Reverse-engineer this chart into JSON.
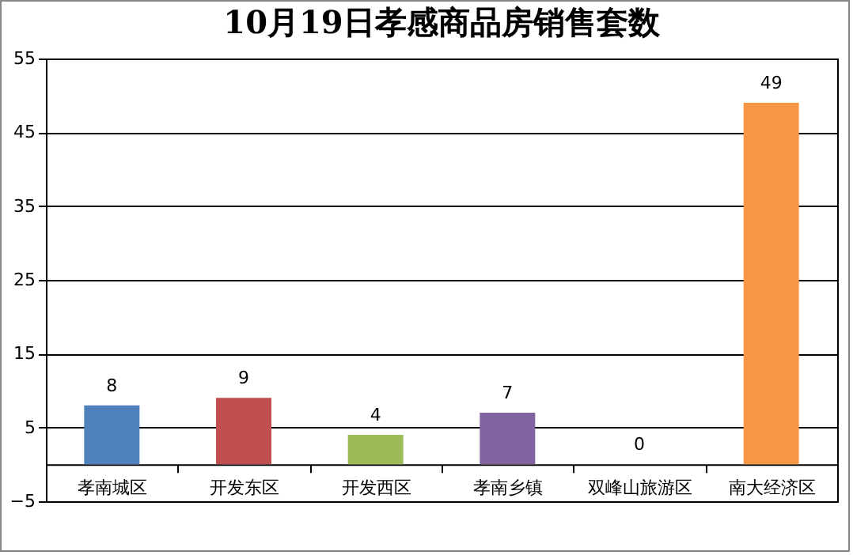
{
  "chart_data": {
    "type": "bar",
    "title": "10月19日孝感商品房销售套数",
    "categories": [
      "孝南城区",
      "开发东区",
      "开发西区",
      "孝南乡镇",
      "双峰山旅游区",
      "南大经济区"
    ],
    "values": [
      8,
      9,
      4,
      7,
      0,
      49
    ],
    "colors": [
      "#4f81bd",
      "#c0504d",
      "#9bbb59",
      "#8064a2",
      "#4bacc6",
      "#f79646"
    ],
    "ylim": [
      -5,
      55
    ],
    "yticks": [
      -5,
      5,
      15,
      25,
      35,
      45,
      55
    ],
    "grid": "y",
    "data_labels": true,
    "legend": false
  }
}
